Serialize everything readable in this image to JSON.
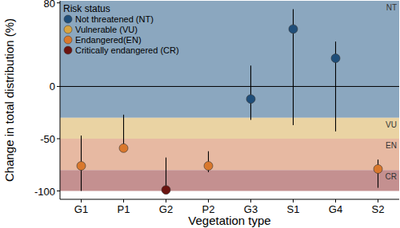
{
  "chart_data": {
    "type": "scatter",
    "x_label": "Vegetation type",
    "y_label": "Change in total distribution (%)",
    "categories": [
      "G1",
      "P1",
      "G2",
      "P2",
      "G3",
      "S1",
      "G4",
      "S2"
    ],
    "legend_title": "Risk status",
    "legend": "top-left",
    "series": [
      {
        "name": "Not threatened (NT)",
        "color": "#1f4e79",
        "values": [
          null,
          null,
          null,
          null,
          -12,
          55,
          27,
          null
        ],
        "lower": [
          null,
          null,
          null,
          null,
          -32,
          -37,
          -43,
          null
        ],
        "upper": [
          null,
          null,
          null,
          null,
          20,
          74,
          43,
          null
        ]
      },
      {
        "name": "Vulnerable (VU)",
        "color": "#d9a441",
        "values": [
          null,
          null,
          null,
          null,
          null,
          null,
          null,
          null
        ],
        "lower": [
          null,
          null,
          null,
          null,
          null,
          null,
          null,
          null
        ],
        "upper": [
          null,
          null,
          null,
          null,
          null,
          null,
          null,
          null
        ]
      },
      {
        "name": "Endangered(EN)",
        "color": "#d9782d",
        "values": [
          -76,
          -59,
          null,
          -76,
          null,
          null,
          null,
          -79
        ],
        "lower": [
          -100,
          -62,
          null,
          -82,
          null,
          null,
          null,
          -97
        ],
        "upper": [
          -47,
          -27,
          null,
          -62,
          null,
          null,
          null,
          -70
        ]
      },
      {
        "name": "Critically endangered (CR)",
        "color": "#6b1410",
        "values": [
          null,
          null,
          -99,
          null,
          null,
          null,
          null,
          null
        ],
        "lower": [
          null,
          null,
          -100,
          null,
          null,
          null,
          null,
          null
        ],
        "upper": [
          null,
          null,
          -68,
          null,
          null,
          null,
          null,
          null
        ]
      }
    ],
    "bands": [
      {
        "name": "NT",
        "from": -30,
        "to": 82,
        "color": "#8ba7bf"
      },
      {
        "name": "VU",
        "from": -50,
        "to": -30,
        "color": "#ead3a3"
      },
      {
        "name": "EN",
        "from": -80,
        "to": -50,
        "color": "#e7b9a2"
      },
      {
        "name": "CR",
        "from": -100,
        "to": -80,
        "color": "#c49090"
      }
    ],
    "reference_line": 0,
    "ylim": [
      -108,
      82
    ],
    "yticks": [
      -100,
      -50,
      0,
      80
    ],
    "grid": false,
    "marker": "circle"
  }
}
